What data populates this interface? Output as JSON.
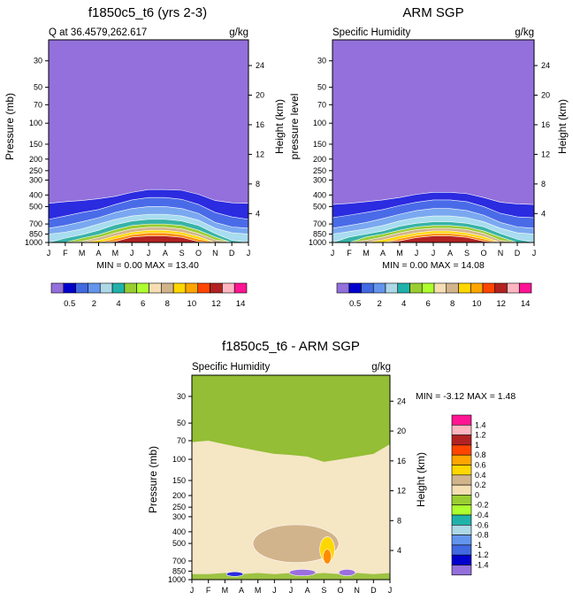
{
  "chart_data": [
    {
      "type": "contour",
      "title": "f1850c5_t6 (yrs 2-3)",
      "subtitle_left": "Q at 36.4579,262.617",
      "subtitle_right": "g/kg",
      "ylabel": "Pressure (mb)",
      "ylabel_right": "Height (km)",
      "months": [
        "J",
        "F",
        "M",
        "A",
        "M",
        "J",
        "J",
        "A",
        "S",
        "O",
        "N",
        "D",
        "J"
      ],
      "pressure_ticks": [
        30,
        50,
        70,
        100,
        150,
        200,
        250,
        300,
        400,
        500,
        700,
        850,
        1000
      ],
      "height_ticks": [
        24,
        20,
        16,
        12,
        8,
        4
      ],
      "ylim": [
        1000,
        20
      ],
      "stats": "MIN =   0.00 MAX =  13.40",
      "min": 0.0,
      "max": 13.4,
      "bands": [
        {
          "color": "#2b2be0",
          "top": [
            470,
            455,
            445,
            430,
            410,
            380,
            360,
            360,
            365,
            395,
            445,
            465,
            470
          ]
        },
        {
          "color": "#4a6be8",
          "top": [
            640,
            600,
            560,
            530,
            480,
            440,
            420,
            420,
            435,
            480,
            560,
            610,
            640
          ]
        },
        {
          "color": "#7aa8f0",
          "top": [
            760,
            720,
            670,
            620,
            560,
            520,
            500,
            500,
            520,
            570,
            680,
            740,
            760
          ]
        },
        {
          "color": "#a8dcef",
          "top": [
            850,
            820,
            770,
            700,
            640,
            600,
            580,
            580,
            600,
            650,
            760,
            830,
            850
          ]
        },
        {
          "color": "#37b3a8",
          "top": [
            1000,
            920,
            860,
            790,
            710,
            660,
            640,
            640,
            660,
            720,
            840,
            960,
            1000
          ]
        },
        {
          "color": "#9acd32",
          "top": [
            1000,
            1000,
            920,
            860,
            780,
            720,
            700,
            700,
            720,
            790,
            900,
            1000,
            1000
          ]
        },
        {
          "color": "#d2b48c",
          "top": [
            1000,
            1000,
            980,
            910,
            830,
            770,
            745,
            745,
            770,
            840,
            950,
            1000,
            1000
          ]
        },
        {
          "color": "#ffd700",
          "top": [
            1000,
            1000,
            1000,
            960,
            880,
            820,
            790,
            790,
            820,
            890,
            1000,
            1000,
            1000
          ]
        },
        {
          "color": "#ff8c00",
          "top": [
            1000,
            1000,
            1000,
            1000,
            930,
            860,
            830,
            830,
            860,
            940,
            1000,
            1000,
            1000
          ]
        },
        {
          "color": "#b22222",
          "top": [
            1000,
            1000,
            1000,
            1000,
            980,
            900,
            880,
            880,
            905,
            985,
            1000,
            1000,
            1000
          ]
        }
      ]
    },
    {
      "type": "contour",
      "title": "ARM SGP",
      "subtitle_left": "Specific Humidity",
      "subtitle_right": "g/kg",
      "ylabel": "pressure level",
      "ylabel_right": "Height (km)",
      "months": [
        "J",
        "F",
        "M",
        "A",
        "M",
        "J",
        "J",
        "A",
        "S",
        "O",
        "N",
        "D",
        "J"
      ],
      "pressure_ticks": [
        30,
        50,
        70,
        100,
        150,
        200,
        250,
        300,
        400,
        500,
        700,
        850,
        1000
      ],
      "height_ticks": [
        24,
        20,
        16,
        12,
        8,
        4
      ],
      "ylim": [
        1000,
        20
      ],
      "stats": "MIN =   0.00 MAX =  14.08",
      "min": 0.0,
      "max": 14.08,
      "bands": [
        {
          "color": "#2b2be0",
          "top": [
            480,
            470,
            455,
            440,
            420,
            395,
            380,
            380,
            390,
            420,
            460,
            475,
            480
          ]
        },
        {
          "color": "#4a6be8",
          "top": [
            620,
            590,
            560,
            530,
            490,
            460,
            440,
            440,
            455,
            500,
            570,
            610,
            620
          ]
        },
        {
          "color": "#7aa8f0",
          "top": [
            760,
            720,
            680,
            630,
            580,
            540,
            520,
            520,
            540,
            590,
            680,
            740,
            760
          ]
        },
        {
          "color": "#a8dcef",
          "top": [
            850,
            810,
            770,
            720,
            660,
            620,
            600,
            600,
            620,
            670,
            760,
            830,
            850
          ]
        },
        {
          "color": "#37b3a8",
          "top": [
            1000,
            900,
            850,
            800,
            730,
            690,
            670,
            670,
            690,
            740,
            840,
            940,
            1000
          ]
        },
        {
          "color": "#9acd32",
          "top": [
            1000,
            1000,
            900,
            850,
            790,
            740,
            720,
            720,
            740,
            800,
            900,
            1000,
            1000
          ]
        },
        {
          "color": "#d2b48c",
          "top": [
            1000,
            1000,
            960,
            900,
            830,
            780,
            760,
            760,
            780,
            840,
            960,
            1000,
            1000
          ]
        },
        {
          "color": "#ffd700",
          "top": [
            1000,
            1000,
            1000,
            950,
            880,
            830,
            800,
            800,
            830,
            890,
            1000,
            1000,
            1000
          ]
        },
        {
          "color": "#ff8c00",
          "top": [
            1000,
            1000,
            1000,
            1000,
            930,
            870,
            840,
            840,
            870,
            935,
            1000,
            1000,
            1000
          ]
        },
        {
          "color": "#b22222",
          "top": [
            1000,
            1000,
            1000,
            1000,
            970,
            910,
            880,
            880,
            905,
            975,
            1000,
            1000,
            1000
          ]
        }
      ]
    },
    {
      "type": "contour",
      "title": "f1850c5_t6 - ARM SGP",
      "subtitle_left": "Specific Humidity",
      "subtitle_right": "g/kg",
      "ylabel": "Pressure (mb)",
      "ylabel_right": "Height (km)",
      "months": [
        "J",
        "F",
        "M",
        "A",
        "M",
        "J",
        "J",
        "A",
        "S",
        "O",
        "N",
        "D",
        "J"
      ],
      "pressure_ticks": [
        30,
        50,
        70,
        100,
        150,
        200,
        250,
        300,
        400,
        500,
        700,
        850,
        1000
      ],
      "height_ticks": [
        24,
        20,
        16,
        12,
        8,
        4
      ],
      "ylim": [
        1000,
        20
      ],
      "stats": "MIN =  -3.12 MAX =   1.48",
      "min": -3.12,
      "max": 1.48,
      "upper_boundary": [
        72,
        70,
        75,
        80,
        85,
        90,
        92,
        95,
        105,
        100,
        95,
        90,
        75
      ],
      "features": [
        {
          "label": "moist-blob",
          "color": "#d2b48c",
          "month": 6.3,
          "p": 500,
          "dm": 2.6,
          "dp_lo": 350,
          "dp_hi": 720
        },
        {
          "label": "moist-core",
          "color": "#ffd700",
          "month": 8.2,
          "p": 560,
          "dm": 0.45,
          "dp_lo": 440,
          "dp_hi": 720
        },
        {
          "label": "moist-peak",
          "color": "#ff8c00",
          "month": 8.2,
          "p": 650,
          "dm": 0.25,
          "dp_lo": 560,
          "dp_hi": 740
        },
        {
          "label": "dry-jul",
          "color": "#9b6fdf",
          "month": 6.7,
          "p": 870,
          "dm": 0.8,
          "dp_lo": 820,
          "dp_hi": 930
        },
        {
          "label": "dry-oct",
          "color": "#9b6fdf",
          "month": 9.4,
          "p": 880,
          "dm": 0.5,
          "dp_lo": 820,
          "dp_hi": 930
        },
        {
          "label": "dry-mar",
          "color": "#2b2be0",
          "month": 2.6,
          "p": 900,
          "dm": 0.5,
          "dp_lo": 860,
          "dp_hi": 940
        }
      ]
    }
  ],
  "colorbar_top": {
    "colors": [
      "#9370db",
      "#0000cd",
      "#4169e1",
      "#6495ed",
      "#add8e6",
      "#20b2aa",
      "#9acd32",
      "#adff2f",
      "#f5deb3",
      "#d2b48c",
      "#ffd700",
      "#ffa500",
      "#ff4500",
      "#b22222",
      "#ffb6c1",
      "#ff1493"
    ],
    "labels": [
      "0.5",
      "2",
      "4",
      "6",
      "8",
      "10",
      "12",
      "14"
    ]
  },
  "colorbar_diff": {
    "colors": [
      "#ff1493",
      "#ffb6c1",
      "#b22222",
      "#ff4500",
      "#ffa500",
      "#ffd700",
      "#d2b48c",
      "#f5deb3",
      "#9acd32",
      "#adff2f",
      "#20b2aa",
      "#add8e6",
      "#6495ed",
      "#4169e1",
      "#0000cd",
      "#9370db"
    ],
    "labels": [
      "1.4",
      "1.2",
      "1",
      "0.8",
      "0.6",
      "0.4",
      "0.2",
      "0",
      "-0.2",
      "-0.4",
      "-0.6",
      "-0.8",
      "-1",
      "-1.2",
      "-1.4"
    ]
  },
  "colors": {
    "upper_fill": "#9370db",
    "bg_diff": "#f5e6c4",
    "diff_top": "#93be35"
  }
}
